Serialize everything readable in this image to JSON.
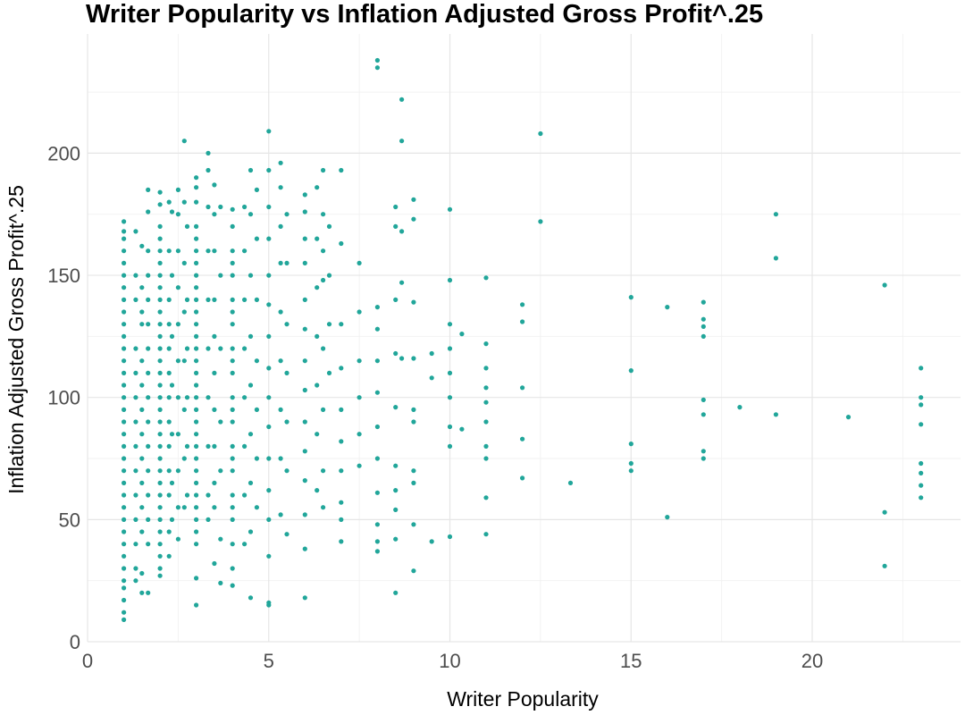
{
  "chart_data": {
    "type": "scatter",
    "title": "Writer Popularity vs Inflation Adjusted Gross Profit^.25",
    "xlabel": "Writer Popularity",
    "ylabel": "Inflation Adjusted Gross Profit^.25",
    "xlim": [
      0,
      24
    ],
    "ylim": [
      0,
      240
    ],
    "x_ticks": [
      0,
      5,
      10,
      15,
      20
    ],
    "y_ticks": [
      0,
      50,
      100,
      150,
      200
    ],
    "x_tick_labels": [
      "0",
      "5",
      "10",
      "15",
      "20"
    ],
    "y_tick_labels": [
      "0",
      "50",
      "100",
      "150",
      "200"
    ],
    "grid": true,
    "point_color": "#21A69A",
    "points": [
      [
        1,
        172
      ],
      [
        1,
        168
      ],
      [
        1,
        160
      ],
      [
        1,
        150
      ],
      [
        1,
        140
      ],
      [
        1,
        130
      ],
      [
        1,
        120
      ],
      [
        1,
        110
      ],
      [
        1,
        100
      ],
      [
        1,
        90
      ],
      [
        1,
        80
      ],
      [
        1,
        70
      ],
      [
        1,
        60
      ],
      [
        1,
        50
      ],
      [
        1,
        45
      ],
      [
        1,
        40
      ],
      [
        1,
        35
      ],
      [
        1,
        30
      ],
      [
        1,
        25
      ],
      [
        1,
        22
      ],
      [
        1,
        17
      ],
      [
        1,
        12
      ],
      [
        1,
        9
      ],
      [
        1,
        165
      ],
      [
        1,
        155
      ],
      [
        1,
        145
      ],
      [
        1,
        135
      ],
      [
        1,
        125
      ],
      [
        1,
        115
      ],
      [
        1,
        105
      ],
      [
        1,
        95
      ],
      [
        1,
        85
      ],
      [
        1,
        75
      ],
      [
        1,
        65
      ],
      [
        1,
        55
      ],
      [
        1.33,
        168
      ],
      [
        1.33,
        150
      ],
      [
        1.33,
        120
      ],
      [
        1.33,
        100
      ],
      [
        1.33,
        80
      ],
      [
        1.33,
        60
      ],
      [
        1.33,
        40
      ],
      [
        1.33,
        30
      ],
      [
        1.33,
        25
      ],
      [
        1.33,
        140
      ],
      [
        1.33,
        110
      ],
      [
        1.33,
        90
      ],
      [
        1.33,
        70
      ],
      [
        1.33,
        50
      ],
      [
        1.5,
        162
      ],
      [
        1.5,
        145
      ],
      [
        1.5,
        130
      ],
      [
        1.5,
        115
      ],
      [
        1.5,
        95
      ],
      [
        1.5,
        75
      ],
      [
        1.5,
        55
      ],
      [
        1.5,
        45
      ],
      [
        1.5,
        28
      ],
      [
        1.5,
        20
      ],
      [
        1.5,
        135
      ],
      [
        1.5,
        105
      ],
      [
        1.5,
        85
      ],
      [
        1.5,
        65
      ],
      [
        1.67,
        185
      ],
      [
        1.67,
        176
      ],
      [
        1.67,
        160
      ],
      [
        1.67,
        140
      ],
      [
        1.67,
        120
      ],
      [
        1.67,
        100
      ],
      [
        1.67,
        80
      ],
      [
        1.67,
        60
      ],
      [
        1.67,
        40
      ],
      [
        1.67,
        20
      ],
      [
        1.67,
        150
      ],
      [
        1.67,
        130
      ],
      [
        1.67,
        110
      ],
      [
        1.67,
        90
      ],
      [
        1.67,
        70
      ],
      [
        1.67,
        50
      ],
      [
        2,
        184
      ],
      [
        2,
        179
      ],
      [
        2,
        170
      ],
      [
        2,
        160
      ],
      [
        2,
        150
      ],
      [
        2,
        140
      ],
      [
        2,
        130
      ],
      [
        2,
        120
      ],
      [
        2,
        110
      ],
      [
        2,
        100
      ],
      [
        2,
        90
      ],
      [
        2,
        80
      ],
      [
        2,
        70
      ],
      [
        2,
        60
      ],
      [
        2,
        50
      ],
      [
        2,
        40
      ],
      [
        2,
        30
      ],
      [
        2,
        27
      ],
      [
        2,
        165
      ],
      [
        2,
        155
      ],
      [
        2,
        145
      ],
      [
        2,
        135
      ],
      [
        2,
        125
      ],
      [
        2,
        115
      ],
      [
        2,
        105
      ],
      [
        2,
        95
      ],
      [
        2,
        85
      ],
      [
        2,
        75
      ],
      [
        2,
        65
      ],
      [
        2,
        55
      ],
      [
        2,
        45
      ],
      [
        2,
        35
      ],
      [
        2.25,
        180
      ],
      [
        2.25,
        160
      ],
      [
        2.25,
        140
      ],
      [
        2.25,
        120
      ],
      [
        2.25,
        100
      ],
      [
        2.25,
        80
      ],
      [
        2.25,
        60
      ],
      [
        2.25,
        45
      ],
      [
        2.25,
        35
      ],
      [
        2.25,
        130
      ],
      [
        2.25,
        110
      ],
      [
        2.25,
        90
      ],
      [
        2.25,
        70
      ],
      [
        2.33,
        176
      ],
      [
        2.33,
        150
      ],
      [
        2.33,
        125
      ],
      [
        2.33,
        105
      ],
      [
        2.33,
        85
      ],
      [
        2.33,
        65
      ],
      [
        2.33,
        50
      ],
      [
        2.5,
        185
      ],
      [
        2.5,
        175
      ],
      [
        2.5,
        160
      ],
      [
        2.5,
        145
      ],
      [
        2.5,
        130
      ],
      [
        2.5,
        115
      ],
      [
        2.5,
        100
      ],
      [
        2.5,
        85
      ],
      [
        2.5,
        70
      ],
      [
        2.5,
        55
      ],
      [
        2.5,
        42
      ],
      [
        2.67,
        205
      ],
      [
        2.67,
        180
      ],
      [
        2.67,
        155
      ],
      [
        2.67,
        135
      ],
      [
        2.67,
        115
      ],
      [
        2.67,
        95
      ],
      [
        2.67,
        75
      ],
      [
        2.67,
        55
      ],
      [
        2.75,
        170
      ],
      [
        2.75,
        140
      ],
      [
        2.75,
        120
      ],
      [
        2.75,
        100
      ],
      [
        2.75,
        80
      ],
      [
        2.75,
        60
      ],
      [
        3,
        190
      ],
      [
        3,
        186
      ],
      [
        3,
        180
      ],
      [
        3,
        170
      ],
      [
        3,
        160
      ],
      [
        3,
        150
      ],
      [
        3,
        140
      ],
      [
        3,
        130
      ],
      [
        3,
        120
      ],
      [
        3,
        110
      ],
      [
        3,
        100
      ],
      [
        3,
        90
      ],
      [
        3,
        80
      ],
      [
        3,
        70
      ],
      [
        3,
        60
      ],
      [
        3,
        50
      ],
      [
        3,
        40
      ],
      [
        3,
        26
      ],
      [
        3,
        15
      ],
      [
        3,
        165
      ],
      [
        3,
        155
      ],
      [
        3,
        145
      ],
      [
        3,
        135
      ],
      [
        3,
        125
      ],
      [
        3,
        115
      ],
      [
        3,
        105
      ],
      [
        3,
        95
      ],
      [
        3,
        85
      ],
      [
        3,
        75
      ],
      [
        3,
        65
      ],
      [
        3,
        55
      ],
      [
        3,
        45
      ],
      [
        3.33,
        200
      ],
      [
        3.33,
        193
      ],
      [
        3.33,
        178
      ],
      [
        3.33,
        160
      ],
      [
        3.33,
        140
      ],
      [
        3.33,
        120
      ],
      [
        3.33,
        100
      ],
      [
        3.33,
        80
      ],
      [
        3.33,
        60
      ],
      [
        3.33,
        50
      ],
      [
        3.5,
        187
      ],
      [
        3.5,
        175
      ],
      [
        3.5,
        160
      ],
      [
        3.5,
        140
      ],
      [
        3.5,
        125
      ],
      [
        3.5,
        110
      ],
      [
        3.5,
        95
      ],
      [
        3.5,
        80
      ],
      [
        3.5,
        65
      ],
      [
        3.5,
        55
      ],
      [
        3.5,
        32
      ],
      [
        3.67,
        178
      ],
      [
        3.67,
        150
      ],
      [
        3.67,
        120
      ],
      [
        3.67,
        90
      ],
      [
        3.67,
        70
      ],
      [
        3.67,
        42
      ],
      [
        3.67,
        24
      ],
      [
        4,
        177
      ],
      [
        4,
        170
      ],
      [
        4,
        160
      ],
      [
        4,
        150
      ],
      [
        4,
        140
      ],
      [
        4,
        130
      ],
      [
        4,
        120
      ],
      [
        4,
        110
      ],
      [
        4,
        100
      ],
      [
        4,
        90
      ],
      [
        4,
        80
      ],
      [
        4,
        70
      ],
      [
        4,
        60
      ],
      [
        4,
        50
      ],
      [
        4,
        40
      ],
      [
        4,
        30
      ],
      [
        4,
        23
      ],
      [
        4,
        155
      ],
      [
        4,
        135
      ],
      [
        4,
        115
      ],
      [
        4,
        95
      ],
      [
        4,
        75
      ],
      [
        4,
        55
      ],
      [
        4.33,
        178
      ],
      [
        4.33,
        160
      ],
      [
        4.33,
        140
      ],
      [
        4.33,
        120
      ],
      [
        4.33,
        100
      ],
      [
        4.33,
        80
      ],
      [
        4.33,
        60
      ],
      [
        4.33,
        40
      ],
      [
        4.5,
        193
      ],
      [
        4.5,
        175
      ],
      [
        4.5,
        150
      ],
      [
        4.5,
        125
      ],
      [
        4.5,
        105
      ],
      [
        4.5,
        85
      ],
      [
        4.5,
        65
      ],
      [
        4.5,
        45
      ],
      [
        4.5,
        18
      ],
      [
        4.67,
        185
      ],
      [
        4.67,
        165
      ],
      [
        4.67,
        140
      ],
      [
        4.67,
        115
      ],
      [
        4.67,
        95
      ],
      [
        4.67,
        75
      ],
      [
        4.67,
        55
      ],
      [
        5,
        209
      ],
      [
        5,
        193
      ],
      [
        5,
        178
      ],
      [
        5,
        165
      ],
      [
        5,
        150
      ],
      [
        5,
        138
      ],
      [
        5,
        125
      ],
      [
        5,
        112
      ],
      [
        5,
        100
      ],
      [
        5,
        88
      ],
      [
        5,
        75
      ],
      [
        5,
        62
      ],
      [
        5,
        50
      ],
      [
        5,
        35
      ],
      [
        5,
        16
      ],
      [
        5,
        15
      ],
      [
        5.33,
        196
      ],
      [
        5.33,
        186
      ],
      [
        5.33,
        170
      ],
      [
        5.33,
        155
      ],
      [
        5.33,
        135
      ],
      [
        5.33,
        115
      ],
      [
        5.33,
        95
      ],
      [
        5.33,
        75
      ],
      [
        5.33,
        52
      ],
      [
        5.5,
        175
      ],
      [
        5.5,
        155
      ],
      [
        5.5,
        130
      ],
      [
        5.5,
        110
      ],
      [
        5.5,
        90
      ],
      [
        5.5,
        70
      ],
      [
        5.5,
        44
      ],
      [
        6,
        183
      ],
      [
        6,
        176
      ],
      [
        6,
        165
      ],
      [
        6,
        155
      ],
      [
        6,
        140
      ],
      [
        6,
        128
      ],
      [
        6,
        115
      ],
      [
        6,
        103
      ],
      [
        6,
        90
      ],
      [
        6,
        78
      ],
      [
        6,
        66
      ],
      [
        6,
        52
      ],
      [
        6,
        38
      ],
      [
        6,
        18
      ],
      [
        6.33,
        186
      ],
      [
        6.33,
        165
      ],
      [
        6.33,
        145
      ],
      [
        6.33,
        125
      ],
      [
        6.33,
        105
      ],
      [
        6.33,
        85
      ],
      [
        6.33,
        62
      ],
      [
        6.5,
        193
      ],
      [
        6.5,
        175
      ],
      [
        6.5,
        160
      ],
      [
        6.5,
        148
      ],
      [
        6.5,
        120
      ],
      [
        6.5,
        95
      ],
      [
        6.5,
        70
      ],
      [
        6.5,
        55
      ],
      [
        6.67,
        170
      ],
      [
        6.67,
        150
      ],
      [
        6.67,
        130
      ],
      [
        6.67,
        110
      ],
      [
        7,
        193
      ],
      [
        7,
        163
      ],
      [
        7,
        130
      ],
      [
        7,
        112
      ],
      [
        7,
        95
      ],
      [
        7,
        82
      ],
      [
        7,
        70
      ],
      [
        7,
        57
      ],
      [
        7,
        50
      ],
      [
        7,
        41
      ],
      [
        7.5,
        155
      ],
      [
        7.5,
        135
      ],
      [
        7.5,
        115
      ],
      [
        7.5,
        100
      ],
      [
        7.5,
        85
      ],
      [
        7.5,
        72
      ],
      [
        8,
        238
      ],
      [
        8,
        235
      ],
      [
        8,
        137
      ],
      [
        8,
        128
      ],
      [
        8,
        115
      ],
      [
        8,
        102
      ],
      [
        8,
        88
      ],
      [
        8,
        75
      ],
      [
        8,
        61
      ],
      [
        8,
        48
      ],
      [
        8,
        41
      ],
      [
        8,
        37
      ],
      [
        8.5,
        178
      ],
      [
        8.5,
        170
      ],
      [
        8.5,
        140
      ],
      [
        8.5,
        118
      ],
      [
        8.5,
        96
      ],
      [
        8.5,
        72
      ],
      [
        8.5,
        62
      ],
      [
        8.5,
        54
      ],
      [
        8.5,
        42
      ],
      [
        8.5,
        20
      ],
      [
        8.67,
        222
      ],
      [
        8.67,
        205
      ],
      [
        8.67,
        168
      ],
      [
        8.67,
        147
      ],
      [
        8.67,
        116
      ],
      [
        9,
        181
      ],
      [
        9,
        173
      ],
      [
        9,
        139
      ],
      [
        9,
        116
      ],
      [
        9,
        95
      ],
      [
        9,
        90
      ],
      [
        9,
        70
      ],
      [
        9,
        65
      ],
      [
        9,
        48
      ],
      [
        9,
        29
      ],
      [
        9.5,
        118
      ],
      [
        9.5,
        108
      ],
      [
        9.5,
        41
      ],
      [
        10,
        177
      ],
      [
        10,
        148
      ],
      [
        10,
        130
      ],
      [
        10,
        120
      ],
      [
        10,
        110
      ],
      [
        10,
        100
      ],
      [
        10,
        88
      ],
      [
        10,
        80
      ],
      [
        10,
        43
      ],
      [
        10.33,
        126
      ],
      [
        10.33,
        87
      ],
      [
        11,
        149
      ],
      [
        11,
        122
      ],
      [
        11,
        112
      ],
      [
        11,
        104
      ],
      [
        11,
        98
      ],
      [
        11,
        90
      ],
      [
        11,
        80
      ],
      [
        11,
        75
      ],
      [
        11,
        59
      ],
      [
        11,
        44
      ],
      [
        12,
        138
      ],
      [
        12,
        131
      ],
      [
        12,
        104
      ],
      [
        12,
        83
      ],
      [
        12,
        67
      ],
      [
        12.5,
        208
      ],
      [
        12.5,
        172
      ],
      [
        13.33,
        65
      ],
      [
        15,
        141
      ],
      [
        15,
        111
      ],
      [
        15,
        81
      ],
      [
        15,
        73
      ],
      [
        15,
        70
      ],
      [
        16,
        137
      ],
      [
        16,
        51
      ],
      [
        17,
        139
      ],
      [
        17,
        132
      ],
      [
        17,
        129
      ],
      [
        17,
        125
      ],
      [
        17,
        99
      ],
      [
        17,
        93
      ],
      [
        17,
        78
      ],
      [
        17,
        75
      ],
      [
        18,
        96
      ],
      [
        19,
        175
      ],
      [
        19,
        157
      ],
      [
        19,
        93
      ],
      [
        21,
        92
      ],
      [
        22,
        146
      ],
      [
        22,
        53
      ],
      [
        22,
        31
      ],
      [
        23,
        112
      ],
      [
        23,
        100
      ],
      [
        23,
        97
      ],
      [
        23,
        89
      ],
      [
        23,
        73
      ],
      [
        23,
        69
      ],
      [
        23,
        64
      ],
      [
        23,
        59
      ]
    ]
  }
}
